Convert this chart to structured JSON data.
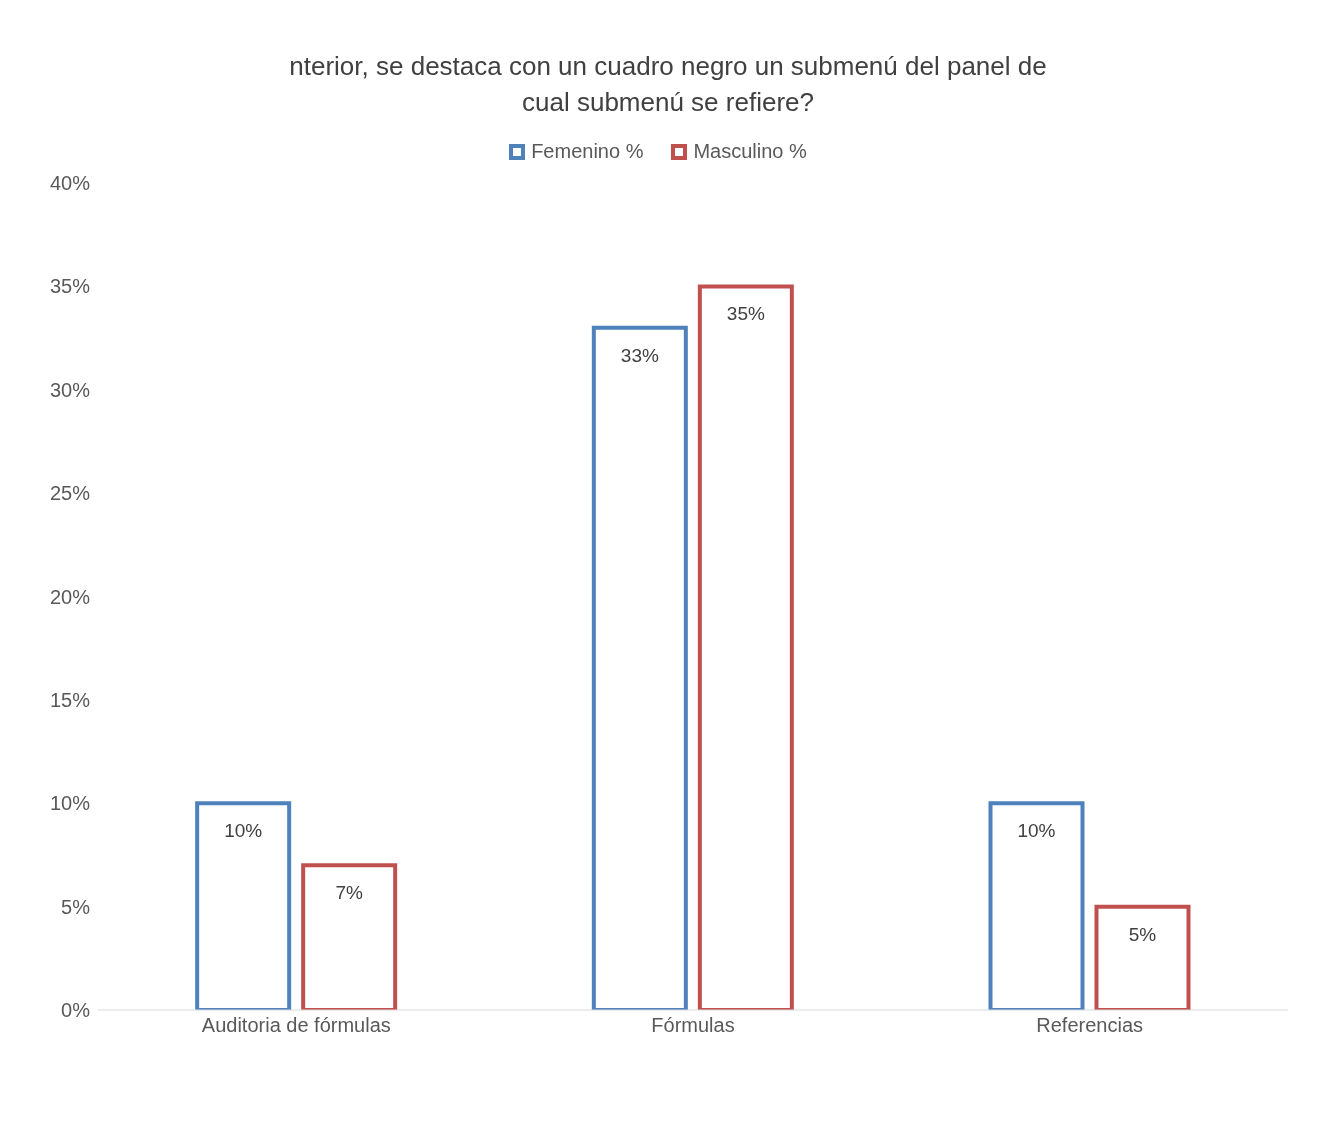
{
  "chart_data": {
    "type": "bar",
    "title": "nterior, se destaca con un cuadro negro un submenú  del panel de cual submenú se refiere?",
    "categories": [
      "Auditoria de fórmulas",
      "Fórmulas",
      "Referencias"
    ],
    "series": [
      {
        "name": "Femenino %",
        "color": "#4f81bd",
        "values": [
          10,
          33,
          10
        ],
        "value_labels": [
          "10%",
          "33%",
          "10%"
        ]
      },
      {
        "name": "Masculino %",
        "color": "#c0504d",
        "values": [
          7,
          35,
          5
        ],
        "value_labels": [
          "7%",
          "35%",
          "5%"
        ]
      }
    ],
    "ylim": [
      0,
      40
    ],
    "yticks": [
      {
        "value": 0,
        "label": "0%"
      },
      {
        "value": 5,
        "label": "5%"
      },
      {
        "value": 10,
        "label": "10%"
      },
      {
        "value": 15,
        "label": "15%"
      },
      {
        "value": 20,
        "label": "20%"
      },
      {
        "value": 25,
        "label": "25%"
      },
      {
        "value": 30,
        "label": "30%"
      },
      {
        "value": 35,
        "label": "35%"
      },
      {
        "value": 40,
        "label": "40%"
      }
    ],
    "grid": false,
    "legend": "top"
  }
}
